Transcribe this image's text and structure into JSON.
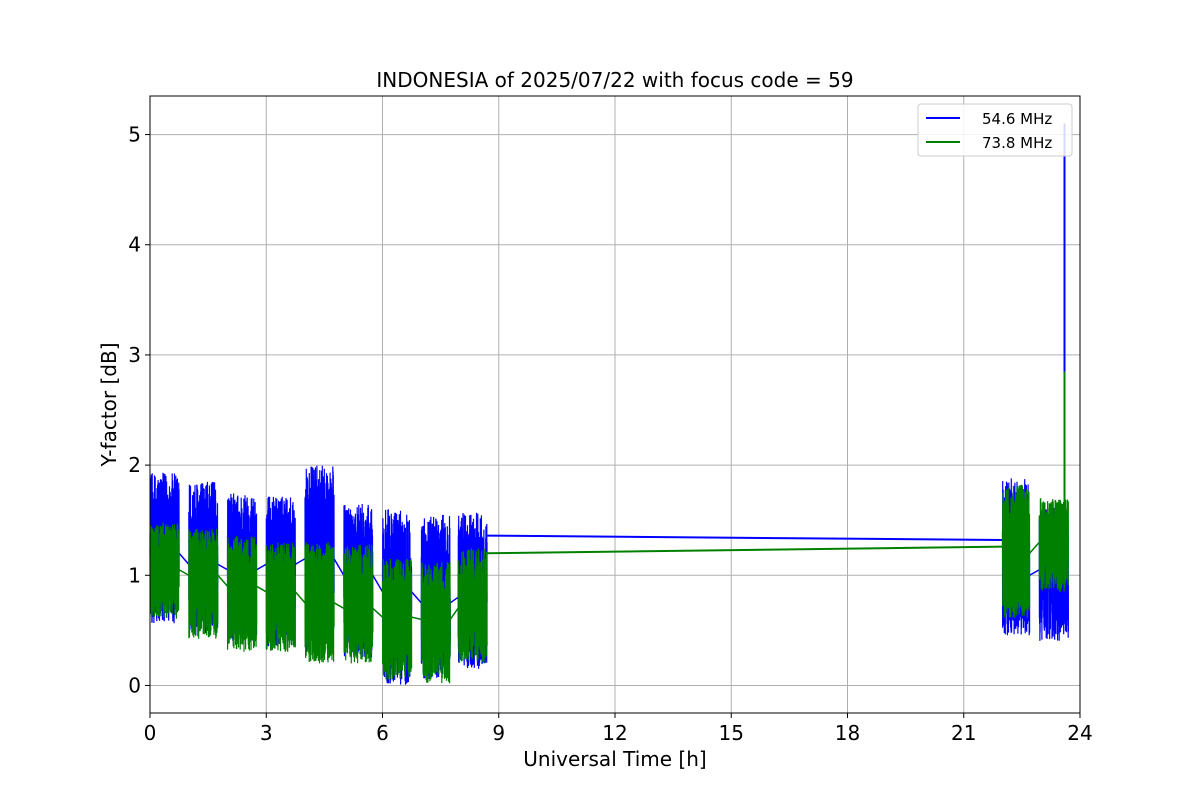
{
  "chart_data": {
    "type": "line",
    "title": "INDONESIA of 2025/07/22 with focus code = 59",
    "xlabel": "Universal Time [h]",
    "ylabel": "Y-factor [dB]",
    "xlim": [
      0,
      24
    ],
    "ylim": [
      -0.25,
      5.35
    ],
    "xticks": [
      0,
      3,
      6,
      9,
      12,
      15,
      18,
      21,
      24
    ],
    "yticks": [
      0,
      1,
      2,
      3,
      4,
      5
    ],
    "grid": true,
    "legend_position": "top-right",
    "series": [
      {
        "name": "54.6 MHz",
        "color": "#0000ff",
        "segments": [
          {
            "x": [
              0.0,
              0.75
            ],
            "min": 0.55,
            "max": 1.93,
            "mean": 1.2
          },
          {
            "x": [
              1.0,
              1.75
            ],
            "min": 0.45,
            "max": 1.85,
            "mean": 1.1
          },
          {
            "x": [
              2.0,
              2.75
            ],
            "min": 0.4,
            "max": 1.75,
            "mean": 1.05
          },
          {
            "x": [
              3.0,
              3.75
            ],
            "min": 0.35,
            "max": 1.72,
            "mean": 1.1
          },
          {
            "x": [
              4.0,
              4.75
            ],
            "min": 0.3,
            "max": 2.0,
            "mean": 1.15
          },
          {
            "x": [
              5.0,
              5.75
            ],
            "min": 0.25,
            "max": 1.65,
            "mean": 1.0
          },
          {
            "x": [
              6.0,
              6.75
            ],
            "min": 0.0,
            "max": 1.6,
            "mean": 0.85
          },
          {
            "x": [
              7.0,
              7.75
            ],
            "min": 0.05,
            "max": 1.55,
            "mean": 0.75
          },
          {
            "x": [
              7.95,
              8.7
            ],
            "min": 0.15,
            "max": 1.58,
            "mean": 0.8
          },
          {
            "x": [
              22.0,
              22.7
            ],
            "min": 0.45,
            "max": 1.88,
            "mean": 1.0
          },
          {
            "x": [
              22.95,
              23.7
            ],
            "min": 0.4,
            "max": 1.62,
            "mean": 1.05
          }
        ],
        "connector": {
          "x": [
            8.7,
            22.0
          ],
          "y": [
            1.36,
            1.32
          ]
        },
        "spike": {
          "x": 23.6,
          "y": 5.1
        }
      },
      {
        "name": "73.8 MHz",
        "color": "#008000",
        "segments": [
          {
            "x": [
              0.0,
              0.75
            ],
            "min": 0.6,
            "max": 1.48,
            "mean": 1.05
          },
          {
            "x": [
              1.0,
              1.75
            ],
            "min": 0.42,
            "max": 1.42,
            "mean": 1.0
          },
          {
            "x": [
              2.0,
              2.75
            ],
            "min": 0.3,
            "max": 1.36,
            "mean": 0.9
          },
          {
            "x": [
              3.0,
              3.75
            ],
            "min": 0.3,
            "max": 1.3,
            "mean": 0.85
          },
          {
            "x": [
              4.0,
              4.75
            ],
            "min": 0.2,
            "max": 1.3,
            "mean": 0.75
          },
          {
            "x": [
              5.0,
              5.75
            ],
            "min": 0.2,
            "max": 1.28,
            "mean": 0.7
          },
          {
            "x": [
              6.0,
              6.75
            ],
            "min": 0.05,
            "max": 1.15,
            "mean": 0.62
          },
          {
            "x": [
              7.0,
              7.75
            ],
            "min": 0.02,
            "max": 1.12,
            "mean": 0.6
          },
          {
            "x": [
              7.95,
              8.7
            ],
            "min": 0.2,
            "max": 1.25,
            "mean": 0.7
          },
          {
            "x": [
              22.0,
              22.7
            ],
            "min": 0.6,
            "max": 1.82,
            "mean": 1.2
          },
          {
            "x": [
              22.95,
              23.7
            ],
            "min": 0.85,
            "max": 1.7,
            "mean": 1.3
          }
        ],
        "connector": {
          "x": [
            8.7,
            22.0
          ],
          "y": [
            1.2,
            1.26
          ]
        },
        "spike": {
          "x": 23.6,
          "y": 2.85
        }
      }
    ]
  }
}
